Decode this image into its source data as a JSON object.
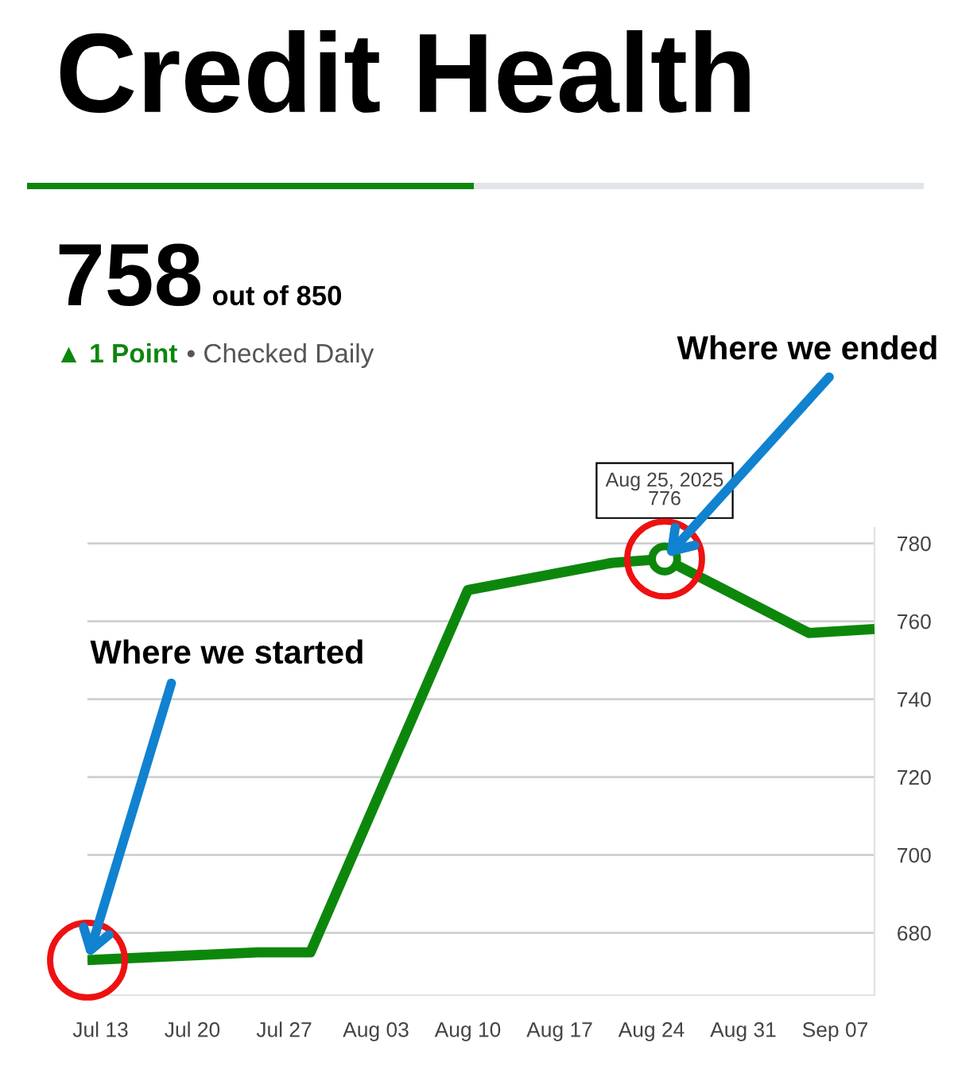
{
  "chart_data": {
    "type": "line",
    "title": "Credit Health",
    "annotations": [
      "758",
      "out of 850",
      "▲ 1 Point",
      "• Checked Daily",
      {
        "text": "Aug 25, 2025\n776",
        "x": "2025-08-25",
        "y": 776
      },
      {
        "text": "Where we started",
        "x": "2025-07-12",
        "y": 673
      },
      {
        "text": "Where we ended",
        "x": "2025-08-25",
        "y": 776
      }
    ],
    "series": [
      {
        "color": "#0c870c",
        "line_style": "solid",
        "marker": "none",
        "x": [
          "2025-07-12",
          "2025-07-25",
          "2025-07-29",
          "2025-08-10",
          "2025-08-21",
          "2025-08-25",
          "2025-09-05",
          "2025-09-10"
        ],
        "values": [
          673,
          675,
          675,
          768,
          775,
          776,
          757,
          758
        ]
      },
      {
        "type": "scatter",
        "color": "#0c870c",
        "marker": "circle",
        "x": [
          "2025-08-25"
        ],
        "values": [
          776
        ]
      }
    ],
    "xlim": [
      "2025-07-12",
      "2025-09-10"
    ],
    "xticks": [
      {
        "value": "2025-07-13",
        "label": "Jul 13"
      },
      {
        "value": "2025-07-20",
        "label": "Jul 20"
      },
      {
        "value": "2025-07-27",
        "label": "Jul 27"
      },
      {
        "value": "2025-08-03",
        "label": "Aug 03"
      },
      {
        "value": "2025-08-10",
        "label": "Aug 10"
      },
      {
        "value": "2025-08-17",
        "label": "Aug 17"
      },
      {
        "value": "2025-08-24",
        "label": "Aug 24"
      },
      {
        "value": "2025-08-31",
        "label": "Aug 31"
      },
      {
        "value": "2025-09-07",
        "label": "Sep 07"
      }
    ],
    "ylim": [
      664,
      784
    ],
    "yticks": [
      680,
      700,
      720,
      740,
      760,
      780
    ],
    "grid": "y"
  }
}
